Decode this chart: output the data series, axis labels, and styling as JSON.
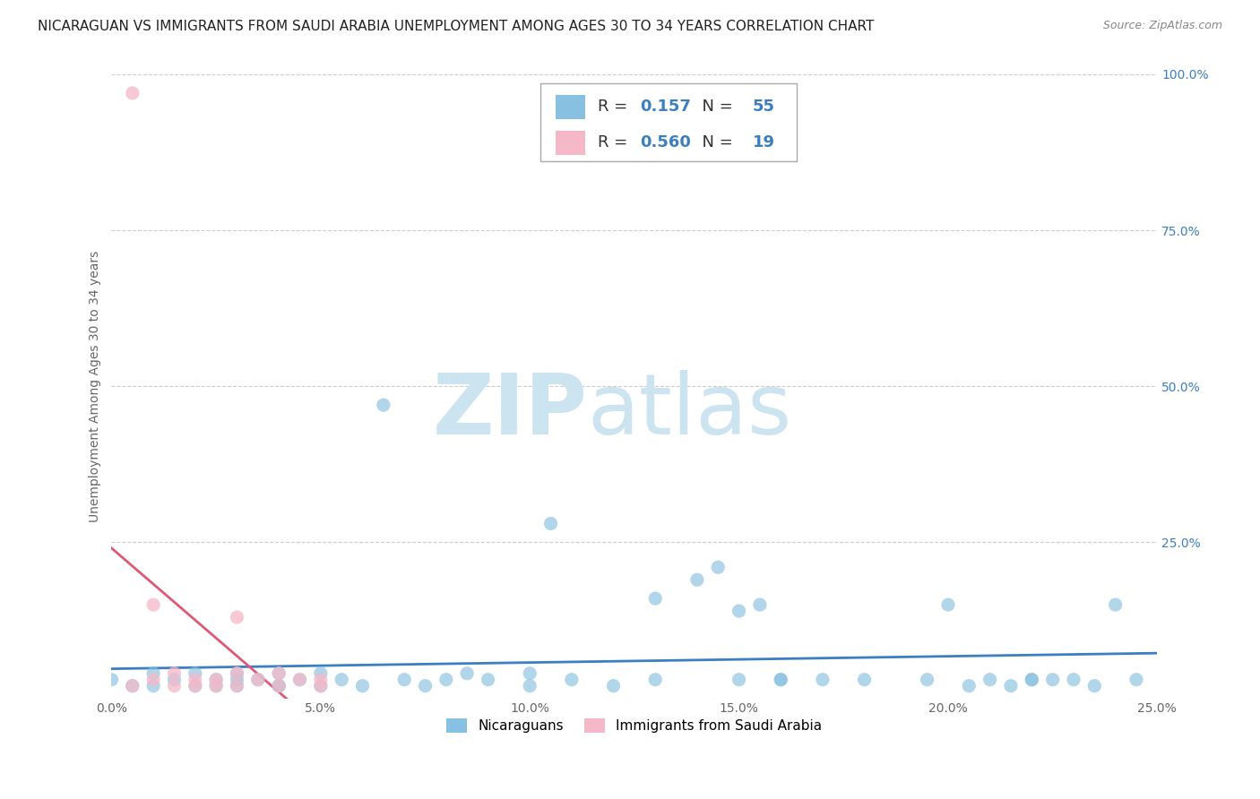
{
  "title": "NICARAGUAN VS IMMIGRANTS FROM SAUDI ARABIA UNEMPLOYMENT AMONG AGES 30 TO 34 YEARS CORRELATION CHART",
  "source": "Source: ZipAtlas.com",
  "ylabel": "Unemployment Among Ages 30 to 34 years",
  "xlim": [
    0.0,
    0.25
  ],
  "ylim": [
    0.0,
    1.0
  ],
  "xticks": [
    0.0,
    0.05,
    0.1,
    0.15,
    0.2,
    0.25
  ],
  "xtick_labels": [
    "0.0%",
    "5.0%",
    "10.0%",
    "15.0%",
    "20.0%",
    "25.0%"
  ],
  "yticks": [
    0.0,
    0.25,
    0.5,
    0.75,
    1.0
  ],
  "ytick_labels": [
    "",
    "25.0%",
    "50.0%",
    "75.0%",
    "100.0%"
  ],
  "color_blue": "#87c0e0",
  "color_pink": "#f5b8c8",
  "color_blue_line": "#3a7fc1",
  "color_pink_line": "#e05878",
  "color_pink_dash": "#e8909f",
  "group1_label": "Nicaraguans",
  "group2_label": "Immigrants from Saudi Arabia",
  "background_color": "#ffffff",
  "grid_color": "#cccccc",
  "title_fontsize": 11,
  "axis_fontsize": 10,
  "tick_fontsize": 10,
  "blue_scatter_x": [
    0.0,
    0.005,
    0.01,
    0.01,
    0.015,
    0.02,
    0.02,
    0.025,
    0.025,
    0.03,
    0.03,
    0.03,
    0.035,
    0.04,
    0.04,
    0.04,
    0.045,
    0.05,
    0.05,
    0.055,
    0.06,
    0.065,
    0.07,
    0.075,
    0.08,
    0.085,
    0.09,
    0.1,
    0.1,
    0.105,
    0.11,
    0.12,
    0.13,
    0.14,
    0.145,
    0.15,
    0.155,
    0.16,
    0.17,
    0.18,
    0.195,
    0.2,
    0.205,
    0.21,
    0.215,
    0.22,
    0.225,
    0.23,
    0.235,
    0.24,
    0.245,
    0.15,
    0.16,
    0.22,
    0.13
  ],
  "blue_scatter_y": [
    0.03,
    0.02,
    0.04,
    0.02,
    0.03,
    0.04,
    0.02,
    0.03,
    0.02,
    0.03,
    0.02,
    0.04,
    0.03,
    0.02,
    0.04,
    0.02,
    0.03,
    0.04,
    0.02,
    0.03,
    0.02,
    0.47,
    0.03,
    0.02,
    0.03,
    0.04,
    0.03,
    0.02,
    0.04,
    0.28,
    0.03,
    0.02,
    0.03,
    0.19,
    0.21,
    0.03,
    0.15,
    0.03,
    0.03,
    0.03,
    0.03,
    0.15,
    0.02,
    0.03,
    0.02,
    0.03,
    0.03,
    0.03,
    0.02,
    0.15,
    0.03,
    0.14,
    0.03,
    0.03,
    0.16
  ],
  "pink_scatter_x": [
    0.005,
    0.005,
    0.01,
    0.01,
    0.015,
    0.015,
    0.02,
    0.02,
    0.025,
    0.025,
    0.03,
    0.03,
    0.03,
    0.035,
    0.04,
    0.04,
    0.045,
    0.05,
    0.05
  ],
  "pink_scatter_y": [
    0.97,
    0.02,
    0.15,
    0.03,
    0.04,
    0.02,
    0.03,
    0.02,
    0.03,
    0.02,
    0.04,
    0.02,
    0.13,
    0.03,
    0.02,
    0.04,
    0.03,
    0.02,
    0.03
  ]
}
